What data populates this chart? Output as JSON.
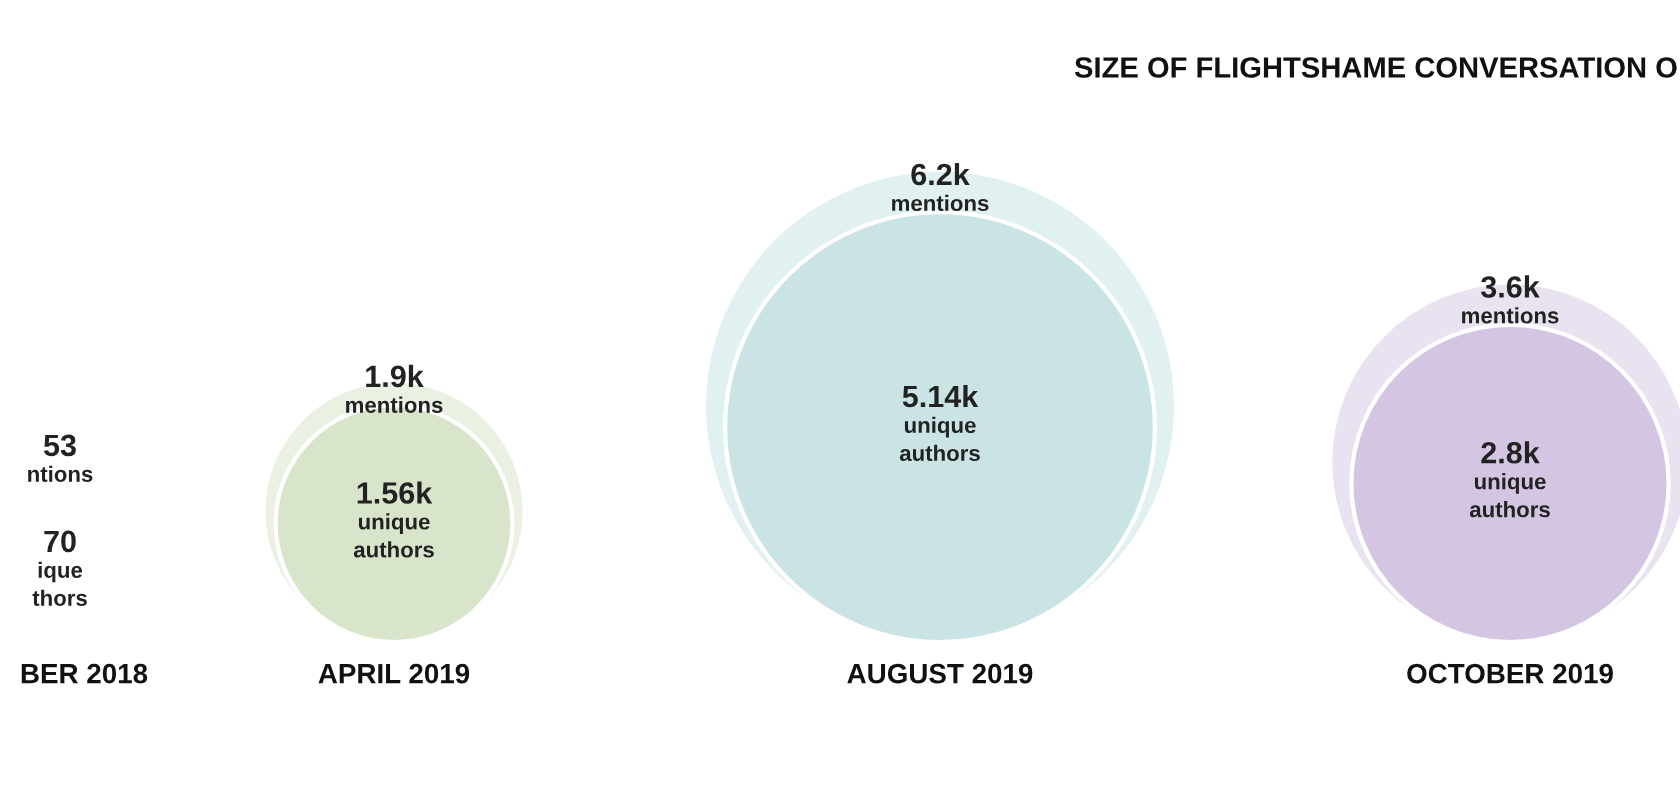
{
  "chart_data": {
    "type": "other",
    "title": "SIZE OF FLIGHTSHAME CONVERSATION O",
    "categories": [
      "BER 2018",
      "APRIL 2019",
      "AUGUST 2019",
      "OCTOBER 2019"
    ],
    "series": [
      {
        "values": [
          null,
          1.9,
          6.2,
          3.6
        ],
        "value_labels": [
          "53\nntions",
          "1.9k\nmentions",
          "6.2k\nmentions",
          "3.6k\nmentions"
        ],
        "colors": [
          "#f7eff0",
          "#ebf1e2",
          "#e1f0f0",
          "#e9e3f1"
        ]
      },
      {
        "values": [
          null,
          1.56,
          5.14,
          2.8
        ],
        "value_labels": [
          "70\nique\nthors",
          "1.56k\nunique\nauthors",
          "5.14k\nunique\nauthors",
          "2.8k\nunique\nauthors"
        ],
        "colors": [
          "#f0e3e4",
          "#d9e5ca",
          "#cae4e5",
          "#d4c6e3"
        ]
      }
    ]
  }
}
